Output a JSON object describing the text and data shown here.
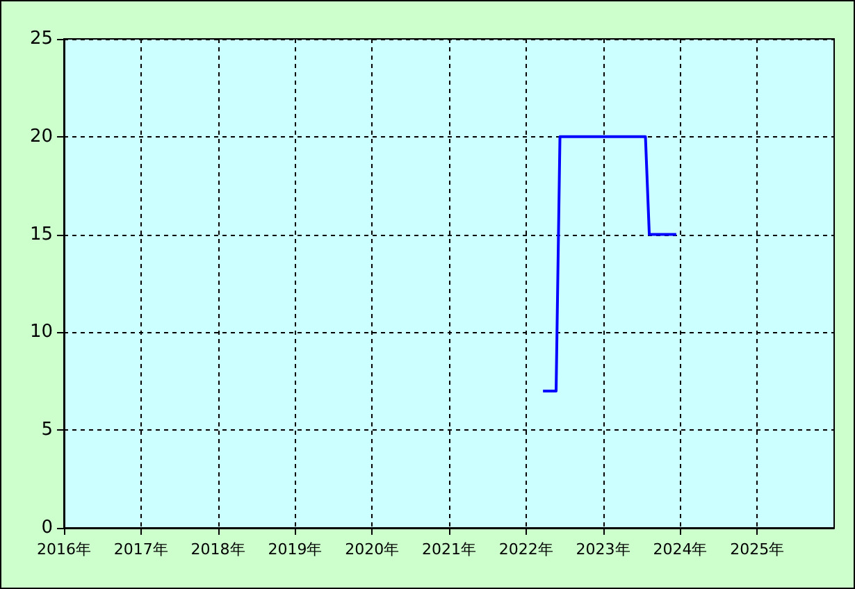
{
  "chart_data": {
    "type": "line",
    "x": [
      2022.22,
      2022.39,
      2022.44,
      2023.55,
      2023.6,
      2023.95
    ],
    "series": [
      {
        "color": "#0000ff",
        "values": [
          7,
          7,
          20,
          20,
          15,
          15
        ]
      }
    ],
    "xlim": [
      2016,
      2026
    ],
    "xticks": [
      {
        "value": 2016,
        "label": "2016年"
      },
      {
        "value": 2017,
        "label": "2017年"
      },
      {
        "value": 2018,
        "label": "2018年"
      },
      {
        "value": 2019,
        "label": "2019年"
      },
      {
        "value": 2020,
        "label": "2020年"
      },
      {
        "value": 2021,
        "label": "2021年"
      },
      {
        "value": 2022,
        "label": "2022年"
      },
      {
        "value": 2023,
        "label": "2023年"
      },
      {
        "value": 2024,
        "label": "2024年"
      },
      {
        "value": 2025,
        "label": "2025年"
      }
    ],
    "ylim": [
      0,
      25
    ],
    "yticks": [
      0,
      5,
      10,
      15,
      20,
      25
    ],
    "grid": true,
    "line_style": "solid",
    "marker": "none"
  }
}
